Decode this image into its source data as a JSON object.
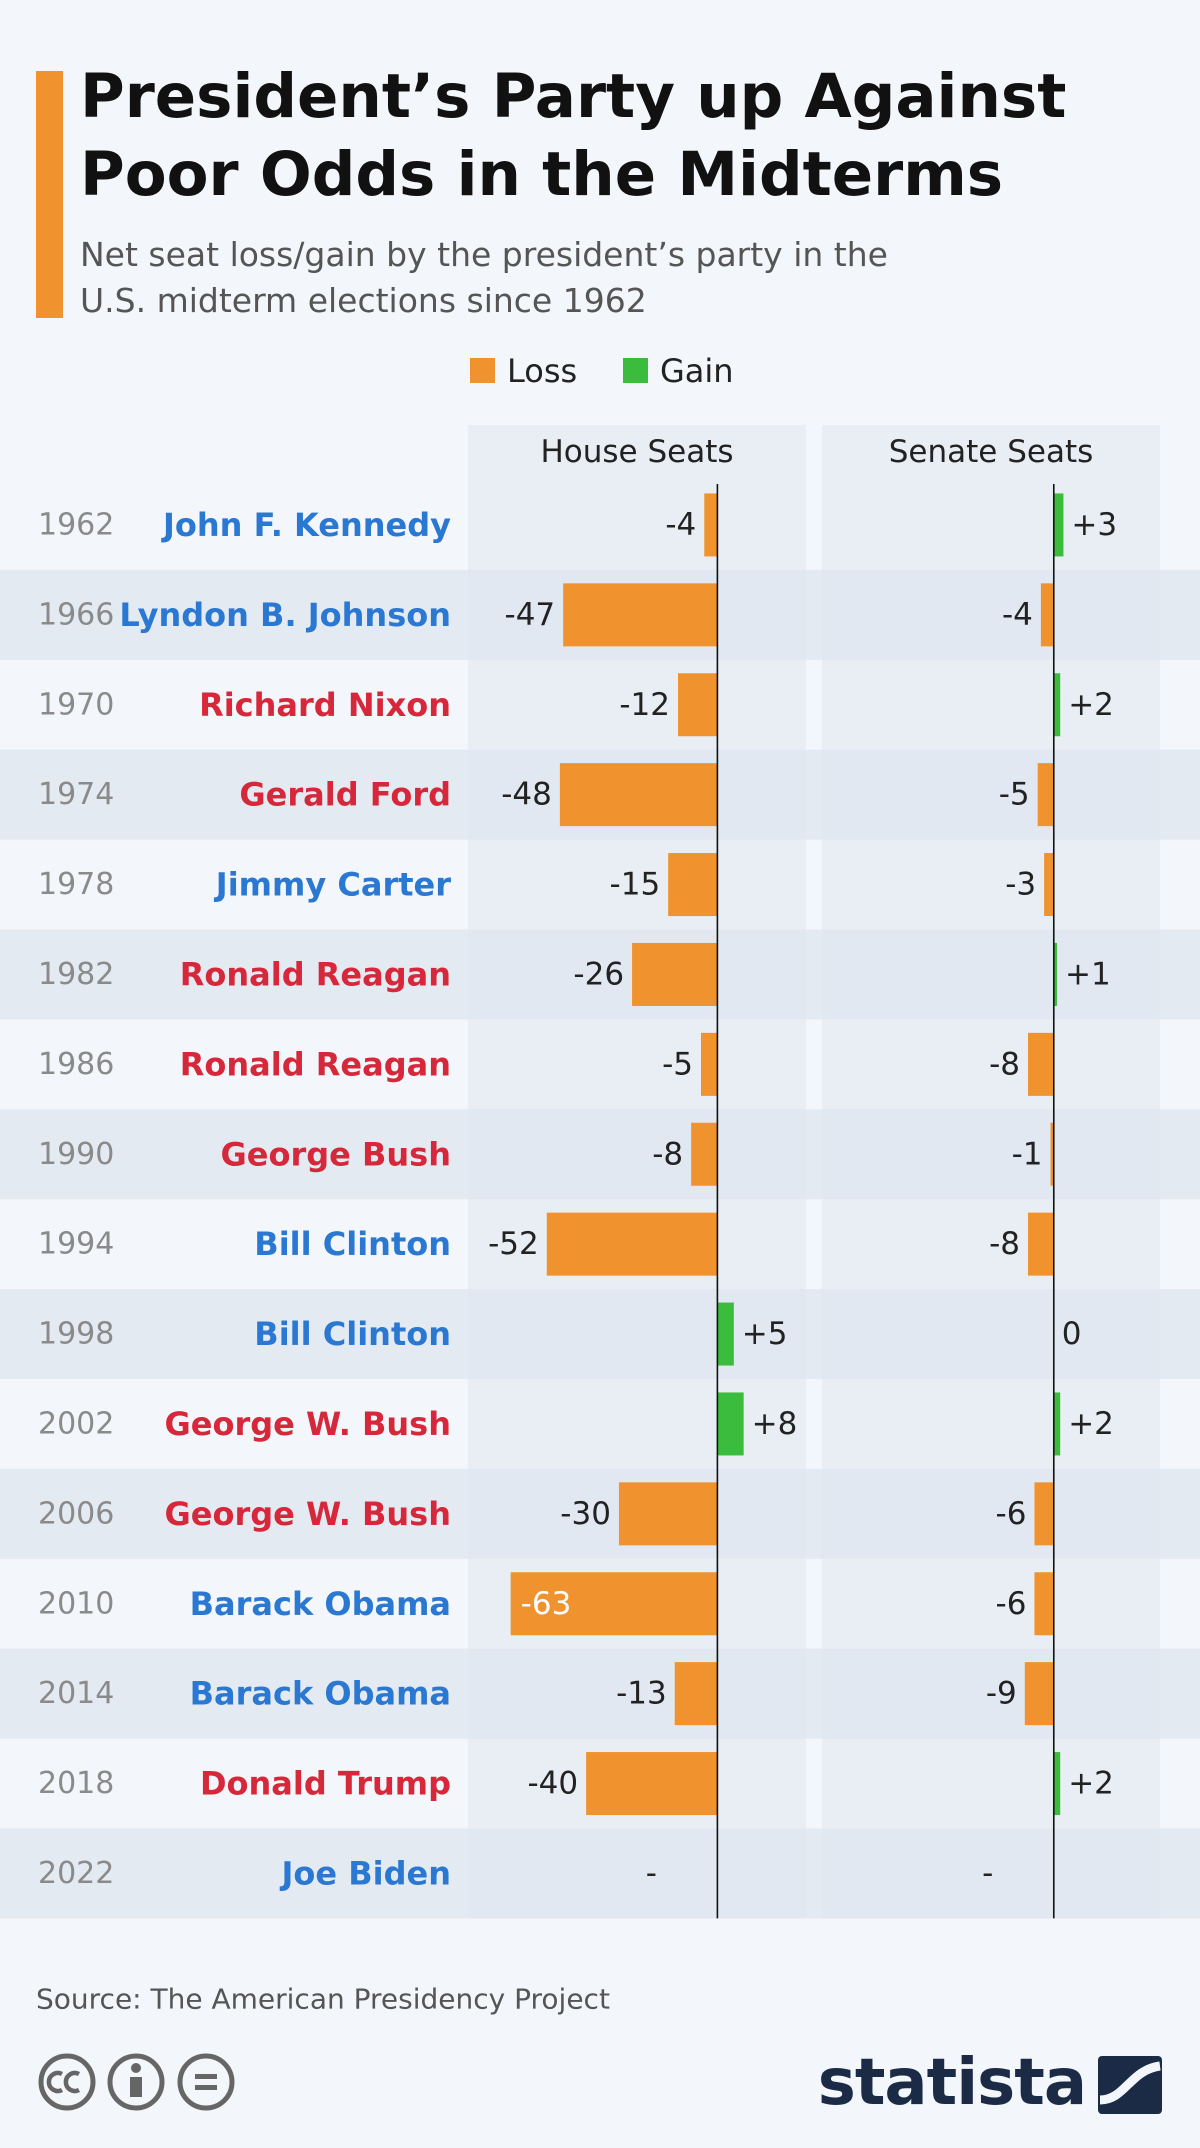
{
  "title": "President’s Party up Against Poor Odds in the Midterms",
  "subtitle": "Net seat loss/gain by the president’s party in the U.S. midterm elections since 1962",
  "legend": [
    {
      "name": "Loss",
      "color": "#f0922e"
    },
    {
      "name": "Gain",
      "color": "#3cbc3c"
    }
  ],
  "presidents": [
    {
      "name": "John F. Kennedy",
      "color": "#2a78d2"
    },
    {
      "name": "Lyndon B. Johnson",
      "color": "#2a78d2"
    },
    {
      "name": "Richard Nixon",
      "color": "#d6283a"
    },
    {
      "name": "Gerald Ford",
      "color": "#d6283a"
    },
    {
      "name": "Jimmy Carter",
      "color": "#2a78d2"
    },
    {
      "name": "Ronald Reagan",
      "color": "#d6283a"
    },
    {
      "name": "Ronald Reagan",
      "color": "#d6283a"
    },
    {
      "name": "George Bush",
      "color": "#d6283a"
    },
    {
      "name": "Bill Clinton",
      "color": "#2a78d2"
    },
    {
      "name": "Bill Clinton",
      "color": "#2a78d2"
    },
    {
      "name": "George W. Bush",
      "color": "#d6283a"
    },
    {
      "name": "George W. Bush",
      "color": "#d6283a"
    },
    {
      "name": "Barack Obama",
      "color": "#2a78d2"
    },
    {
      "name": "Barack Obama",
      "color": "#2a78d2"
    },
    {
      "name": "Donald Trump",
      "color": "#d6283a"
    },
    {
      "name": "Joe Biden",
      "color": "#2a78d2"
    }
  ],
  "chart_data": [
    {
      "type": "bar",
      "title": "House Seats",
      "categories": [
        "1962",
        "1966",
        "1970",
        "1974",
        "1978",
        "1982",
        "1986",
        "1990",
        "1994",
        "1998",
        "2002",
        "2006",
        "2010",
        "2014",
        "2018",
        "2022"
      ],
      "values": [
        -4,
        -47,
        -12,
        -48,
        -15,
        -26,
        -5,
        -8,
        -52,
        5,
        8,
        -30,
        -63,
        -13,
        -40,
        null
      ],
      "value_labels": [
        "-4",
        "-47",
        "-12",
        "-48",
        "-15",
        "-26",
        "-5",
        "-8",
        "-52",
        "+5",
        "+8",
        "-30",
        "-63",
        "-13",
        "-40",
        "-"
      ],
      "xlim": [
        -76,
        27
      ]
    },
    {
      "type": "bar",
      "title": "Senate Seats",
      "values": [
        3,
        -4,
        2,
        -5,
        -3,
        1,
        -8,
        -1,
        -8,
        0,
        2,
        -6,
        -6,
        -9,
        2,
        null
      ],
      "value_labels": [
        "+3",
        "-4",
        "+2",
        "-5",
        "-3",
        "+1",
        "-8",
        "-1",
        "-8",
        "0",
        "+2",
        "-6",
        "-6",
        "-9",
        "+2",
        "-"
      ],
      "xlim": [
        -72,
        33
      ]
    }
  ],
  "source": "Source: The American Presidency Project",
  "brand": "statista"
}
